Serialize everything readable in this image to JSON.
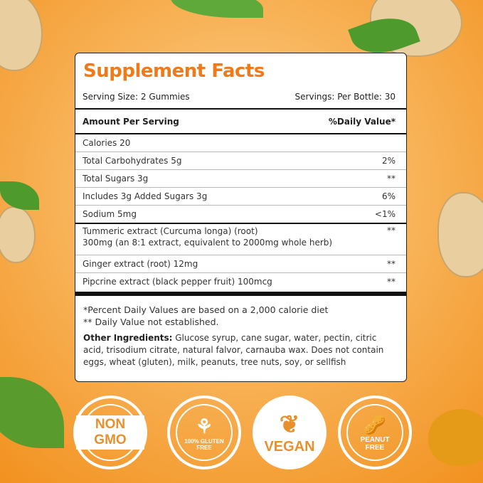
{
  "title": "Supplement Facts",
  "serving_size": "Serving Size: 2 Gummies",
  "servings_per": "Servings: Per Bottle: 30",
  "header": {
    "amount": "Amount Per Serving",
    "dv": "%Daily Value*"
  },
  "rows": [
    {
      "label": "Calories 20",
      "dv": ""
    },
    {
      "label": "Total Carbohydrates 5g",
      "dv": "2%"
    },
    {
      "label": "Total Sugars 3g",
      "dv": "**"
    },
    {
      "label": "Includes 3g Added Sugars 3g",
      "dv": "6%"
    },
    {
      "label": "Sodium 5mg",
      "dv": "<1%"
    },
    {
      "label": "Tummeric extract (Curcuma longa) (root)",
      "label2": "300mg (an 8:1 extract, equivalent to 2000mg whole herb)",
      "dv": "**"
    },
    {
      "label": "Ginger extract (root) 12mg",
      "dv": "**"
    },
    {
      "label": "Pipcrine extract (black pepper fruit) 100mcg",
      "dv": "**"
    }
  ],
  "footnotes": [
    "*Percent Daily Values are based on a 2,000 calorie diet",
    "** Daily Value not established."
  ],
  "other_label": "Other Ingredients:",
  "other_text": " Glucose syrup, cane sugar, water, pectin, citric acid, trisodium citrate, natural falvor, carnauba wax. Does not contain eggs, wheat (gluten), milk, peanuts, tree nuts, soy, or sellfish",
  "badges": {
    "non_gmo": "NON GMO",
    "gluten": "100% GLUTEN FREE",
    "vegan": "VEGAN",
    "peanut": "PEANUT FREE"
  },
  "colors": {
    "accent": "#f07a1a",
    "background": "#f5a340"
  }
}
